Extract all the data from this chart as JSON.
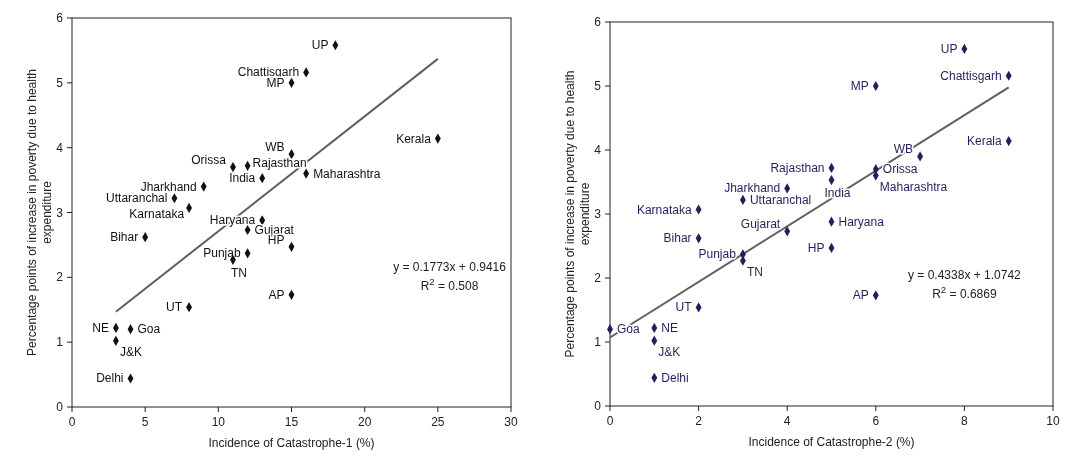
{
  "chart_data": [
    {
      "type": "scatter",
      "xlabel": "Incidence of Catastrophe-1 (%)",
      "ylabel": "Percentage points of increase in poverty due to health expenditure",
      "xlim": [
        0,
        30
      ],
      "xticks": [
        0,
        5,
        10,
        15,
        20,
        25,
        30
      ],
      "ylim": [
        0,
        6
      ],
      "yticks": [
        0,
        1,
        2,
        3,
        4,
        5,
        6
      ],
      "marker": "diamond",
      "grid": false,
      "annotations": [
        "y = 0.1773x + 0.9416",
        "R$^{2}$ = 0.508"
      ],
      "series": [
        {
          "name": "UP",
          "color": "#111111",
          "x": [
            18
          ],
          "values": [
            5.58
          ]
        },
        {
          "name": "Chattisgarh",
          "color": "#111111",
          "x": [
            16
          ],
          "values": [
            5.16
          ]
        },
        {
          "name": "MP",
          "color": "#111111",
          "x": [
            15
          ],
          "values": [
            5.0
          ]
        },
        {
          "name": "Kerala",
          "color": "#111111",
          "x": [
            25
          ],
          "values": [
            4.14
          ]
        },
        {
          "name": "WB",
          "color": "#111111",
          "x": [
            15
          ],
          "values": [
            3.9
          ]
        },
        {
          "name": "Orissa",
          "color": "#111111",
          "x": [
            11
          ],
          "values": [
            3.7
          ]
        },
        {
          "name": "Rajasthan",
          "color": "#111111",
          "x": [
            12
          ],
          "values": [
            3.72
          ]
        },
        {
          "name": "India",
          "color": "#111111",
          "x": [
            13
          ],
          "values": [
            3.53
          ]
        },
        {
          "name": "Maharashtra",
          "color": "#111111",
          "x": [
            16
          ],
          "values": [
            3.6
          ]
        },
        {
          "name": "Jharkhand",
          "color": "#111111",
          "x": [
            9
          ],
          "values": [
            3.4
          ]
        },
        {
          "name": "Uttaranchal",
          "color": "#111111",
          "x": [
            7
          ],
          "values": [
            3.22
          ]
        },
        {
          "name": "Karnataka",
          "color": "#111111",
          "x": [
            8
          ],
          "values": [
            3.07
          ]
        },
        {
          "name": "Haryana",
          "color": "#111111",
          "x": [
            13
          ],
          "values": [
            2.88
          ]
        },
        {
          "name": "Gujarat",
          "color": "#111111",
          "x": [
            12
          ],
          "values": [
            2.73
          ]
        },
        {
          "name": "Bihar",
          "color": "#111111",
          "x": [
            5
          ],
          "values": [
            2.62
          ]
        },
        {
          "name": "HP",
          "color": "#111111",
          "x": [
            15
          ],
          "values": [
            2.47
          ]
        },
        {
          "name": "Punjab",
          "color": "#111111",
          "x": [
            12
          ],
          "values": [
            2.37
          ]
        },
        {
          "name": "TN",
          "color": "#111111",
          "x": [
            11
          ],
          "values": [
            2.27
          ]
        },
        {
          "name": "AP",
          "color": "#111111",
          "x": [
            15
          ],
          "values": [
            1.73
          ]
        },
        {
          "name": "UT",
          "color": "#111111",
          "x": [
            8
          ],
          "values": [
            1.54
          ]
        },
        {
          "name": "NE",
          "color": "#111111",
          "x": [
            3
          ],
          "values": [
            1.22
          ]
        },
        {
          "name": "Goa",
          "color": "#111111",
          "x": [
            4
          ],
          "values": [
            1.2
          ]
        },
        {
          "name": "J&K",
          "color": "#111111",
          "x": [
            3
          ],
          "values": [
            1.02
          ]
        },
        {
          "name": "Delhi",
          "color": "#111111",
          "x": [
            4
          ],
          "values": [
            0.44
          ]
        },
        {
          "type": "line",
          "color": "#5f5f5f",
          "marker": "none",
          "line_style": "solid",
          "x": [
            3,
            25
          ],
          "values": [
            1.47,
            5.37
          ]
        }
      ]
    },
    {
      "type": "scatter",
      "xlabel": "Incidence of Catastrophe-2 (%)",
      "ylabel": "Percentage points of increase in poverty due to health expenditure",
      "xlim": [
        0,
        10
      ],
      "xticks": [
        0,
        2,
        4,
        6,
        8,
        10
      ],
      "ylim": [
        0,
        6
      ],
      "yticks": [
        0,
        1,
        2,
        3,
        4,
        5,
        6
      ],
      "marker": "diamond",
      "grid": false,
      "annotations": [
        "y = 0.4338x + 1.0742",
        "R$^{2}$ = 0.6869"
      ],
      "series": [
        {
          "name": "UP",
          "color": "#231f5c",
          "x": [
            8
          ],
          "values": [
            5.58
          ]
        },
        {
          "name": "Chattisgarh",
          "color": "#231f5c",
          "x": [
            9
          ],
          "values": [
            5.16
          ]
        },
        {
          "name": "MP",
          "color": "#231f5c",
          "x": [
            6
          ],
          "values": [
            5.0
          ]
        },
        {
          "name": "Kerala",
          "color": "#231f5c",
          "x": [
            9
          ],
          "values": [
            4.14
          ]
        },
        {
          "name": "WB",
          "color": "#231f5c",
          "x": [
            7
          ],
          "values": [
            3.9
          ]
        },
        {
          "name": "Orissa",
          "color": "#231f5c",
          "x": [
            6
          ],
          "values": [
            3.7
          ]
        },
        {
          "name": "Rajasthan",
          "color": "#231f5c",
          "x": [
            5
          ],
          "values": [
            3.72
          ]
        },
        {
          "name": "India",
          "color": "#231f5c",
          "x": [
            5
          ],
          "values": [
            3.53
          ]
        },
        {
          "name": "Maharashtra",
          "color": "#231f5c",
          "x": [
            6
          ],
          "values": [
            3.6
          ]
        },
        {
          "name": "Jharkhand",
          "color": "#231f5c",
          "x": [
            4
          ],
          "values": [
            3.4
          ]
        },
        {
          "name": "Uttaranchal",
          "color": "#231f5c",
          "x": [
            3
          ],
          "values": [
            3.22
          ]
        },
        {
          "name": "Karnataka",
          "color": "#231f5c",
          "x": [
            2
          ],
          "values": [
            3.07
          ]
        },
        {
          "name": "Haryana",
          "color": "#231f5c",
          "x": [
            5
          ],
          "values": [
            2.88
          ]
        },
        {
          "name": "Gujarat",
          "color": "#231f5c",
          "x": [
            4
          ],
          "values": [
            2.73
          ]
        },
        {
          "name": "Bihar",
          "color": "#231f5c",
          "x": [
            2
          ],
          "values": [
            2.62
          ]
        },
        {
          "name": "HP",
          "color": "#231f5c",
          "x": [
            5
          ],
          "values": [
            2.47
          ]
        },
        {
          "name": "Punjab",
          "color": "#231f5c",
          "x": [
            3
          ],
          "values": [
            2.37
          ]
        },
        {
          "name": "TN",
          "color": "#231f5c",
          "x": [
            3
          ],
          "values": [
            2.27
          ]
        },
        {
          "name": "AP",
          "color": "#231f5c",
          "x": [
            6
          ],
          "values": [
            1.73
          ]
        },
        {
          "name": "UT",
          "color": "#231f5c",
          "x": [
            2
          ],
          "values": [
            1.54
          ]
        },
        {
          "name": "NE",
          "color": "#231f5c",
          "x": [
            1
          ],
          "values": [
            1.22
          ]
        },
        {
          "name": "Goa",
          "color": "#231f5c",
          "x": [
            0
          ],
          "values": [
            1.2
          ]
        },
        {
          "name": "J&K",
          "color": "#231f5c",
          "x": [
            1
          ],
          "values": [
            1.02
          ]
        },
        {
          "name": "Delhi",
          "color": "#231f5c",
          "x": [
            1
          ],
          "values": [
            0.44
          ]
        },
        {
          "type": "line",
          "color": "#5f5f5f",
          "marker": "none",
          "line_style": "solid",
          "x": [
            0,
            9
          ],
          "values": [
            1.07,
            4.98
          ]
        }
      ]
    }
  ]
}
